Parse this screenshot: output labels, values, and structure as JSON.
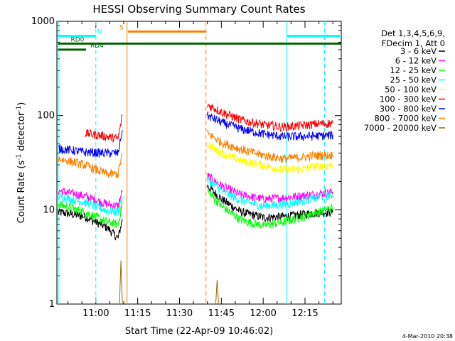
{
  "chart_data": {
    "type": "line",
    "title": "HESSI Observing Summary Count Rates",
    "xlabel": "Start Time (22-Apr-09 10:46:02)",
    "ylabel_main": "Count Rate (s",
    "ylabel_exp1": "-1",
    "ylabel_mid": " detector",
    "ylabel_exp2": "-1",
    "ylabel_end": ")",
    "yscale": "log",
    "ylim": [
      1,
      1000
    ],
    "xlim_minutes": [
      646.03,
      748
    ],
    "x_ticks": [
      {
        "minute": 660,
        "label": "11:00"
      },
      {
        "minute": 675,
        "label": "11:15"
      },
      {
        "minute": 690,
        "label": "11:30"
      },
      {
        "minute": 705,
        "label": "11:45"
      },
      {
        "minute": 720,
        "label": "12:00"
      },
      {
        "minute": 735,
        "label": "12:15"
      }
    ],
    "y_ticks": [
      {
        "value": 1,
        "label": "1"
      },
      {
        "value": 10,
        "label": "10"
      },
      {
        "value": 100,
        "label": "100"
      },
      {
        "value": 1000,
        "label": "1000"
      }
    ],
    "legend_header": [
      "Det 1,3,4,5,6,9,",
      "FDecim 1, Att 0"
    ],
    "legend_position": "right",
    "series": [
      {
        "name": "3 - 6 keV",
        "color": "#000000",
        "segments": [
          [
            [
              646.5,
              9.5
            ],
            [
              656,
              8.5
            ],
            [
              664,
              6.5
            ],
            [
              668,
              5.0
            ],
            [
              669.5,
              8
            ]
          ],
          [
            [
              700,
              18
            ],
            [
              705,
              13
            ],
            [
              712,
              9.5
            ],
            [
              720,
              8.3
            ],
            [
              728,
              8.5
            ],
            [
              737,
              9.2
            ],
            [
              745,
              9.5
            ]
          ]
        ]
      },
      {
        "name": "6 - 12 keV",
        "color": "#ff00ff",
        "segments": [
          [
            [
              646.5,
              16
            ],
            [
              656,
              14
            ],
            [
              664,
              11.5
            ],
            [
              668,
              11
            ],
            [
              669.5,
              16
            ]
          ],
          [
            [
              700,
              23
            ],
            [
              705,
              18
            ],
            [
              712,
              14.5
            ],
            [
              720,
              13
            ],
            [
              728,
              13.5
            ],
            [
              737,
              14.5
            ],
            [
              745,
              15.5
            ]
          ]
        ]
      },
      {
        "name": "12 - 25 keV",
        "color": "#00ff00",
        "segments": [
          [
            [
              646.5,
              11.5
            ],
            [
              656,
              9.5
            ],
            [
              664,
              7.5
            ],
            [
              668,
              7.0
            ],
            [
              669.5,
              12
            ]
          ],
          [
            [
              700,
              16
            ],
            [
              705,
              11
            ],
            [
              712,
              7.8
            ],
            [
              720,
              6.8
            ],
            [
              728,
              7.5
            ],
            [
              737,
              9
            ],
            [
              745,
              10.5
            ]
          ]
        ]
      },
      {
        "name": "25 - 50 keV",
        "color": "#00ffff",
        "segments": [
          [
            [
              646.5,
              14
            ],
            [
              656,
              12
            ],
            [
              664,
              9.8
            ],
            [
              668,
              9.5
            ],
            [
              669.5,
              14
            ]
          ],
          [
            [
              700,
              21
            ],
            [
              705,
              16
            ],
            [
              712,
              12.5
            ],
            [
              720,
              11
            ],
            [
              728,
              11.5
            ],
            [
              737,
              13
            ],
            [
              745,
              14.5
            ]
          ]
        ]
      },
      {
        "name": "50 - 100 keV",
        "color": "#ffff00",
        "segments": [
          [
            [
              700,
              50
            ],
            [
              705,
              40
            ],
            [
              712,
              33
            ],
            [
              720,
              30
            ],
            [
              727,
              26.5
            ],
            [
              733,
              27
            ],
            [
              740,
              29
            ],
            [
              745,
              30
            ]
          ]
        ]
      },
      {
        "name": "100 - 300 keV",
        "color": "#ff0000",
        "segments": [
          [
            [
              656.2,
              65
            ],
            [
              664,
              60
            ],
            [
              668,
              57
            ],
            [
              669.5,
              100
            ]
          ],
          [
            [
              700,
              130
            ],
            [
              705,
              110
            ],
            [
              712,
              90
            ],
            [
              720,
              80
            ],
            [
              727,
              76
            ],
            [
              733,
              78
            ],
            [
              740,
              82
            ],
            [
              745,
              83
            ]
          ]
        ]
      },
      {
        "name": "300 - 800 keV",
        "color": "#0000ff",
        "segments": [
          [
            [
              646.5,
              45
            ],
            [
              656,
              41
            ],
            [
              664,
              40
            ],
            [
              668,
              40
            ],
            [
              669.5,
              70
            ]
          ],
          [
            [
              700,
              100
            ],
            [
              705,
              85
            ],
            [
              712,
              72
            ],
            [
              720,
              64
            ],
            [
              727,
              60
            ],
            [
              733,
              60
            ],
            [
              740,
              61
            ],
            [
              745,
              62
            ]
          ]
        ]
      },
      {
        "name": "800 - 7000 keV",
        "color": "#ff8000",
        "segments": [
          [
            [
              646.5,
              35
            ],
            [
              656,
              30
            ],
            [
              664,
              24
            ],
            [
              668,
              24
            ],
            [
              669.5,
              40
            ]
          ],
          [
            [
              700,
              65
            ],
            [
              705,
              52
            ],
            [
              712,
              44
            ],
            [
              720,
              38
            ],
            [
              727,
              35
            ],
            [
              733,
              36
            ],
            [
              740,
              38
            ],
            [
              745,
              38
            ]
          ]
        ]
      },
      {
        "name": "7000 - 20000 keV",
        "color": "#996600",
        "segments": [
          [
            [
              668.5,
              1.02
            ],
            [
              669,
              2.9
            ],
            [
              669.5,
              1.02
            ]
          ],
          [
            [
              703,
              1.02
            ],
            [
              703.5,
              1.8
            ],
            [
              704,
              1.02
            ]
          ]
        ]
      }
    ],
    "state_bars": [
      {
        "name": "N",
        "color": "#00ffff",
        "y": 700,
        "segments": [
          [
            646.5,
            660
          ],
          [
            728.5,
            748
          ]
        ],
        "label": "N",
        "label_minute": 660.5
      },
      {
        "name": "S",
        "color": "#ff8000",
        "y": 780,
        "segments": [
          [
            671.5,
            699.5
          ]
        ],
        "label": "S",
        "label_minute": 668.5
      },
      {
        "name": "RD0",
        "color": "#006400",
        "y": 580,
        "segments": [
          [
            646.5,
            748
          ]
        ],
        "label": "RD0",
        "label_minute": 651
      },
      {
        "name": "RD4",
        "color": "#006400",
        "y": 500,
        "segments": [
          [
            646.5,
            656.5
          ]
        ],
        "label": "RD4",
        "label_minute": 658
      }
    ],
    "vertical_lines": [
      {
        "minute": 660,
        "color": "#00ffff",
        "style": "dashed"
      },
      {
        "minute": 671.2,
        "color": "#ff8000",
        "style": "solid"
      },
      {
        "minute": 699.5,
        "color": "#ff8000",
        "style": "dashed"
      },
      {
        "minute": 728.5,
        "color": "#00ffff",
        "style": "solid"
      },
      {
        "minute": 742,
        "color": "#00ffff",
        "style": "dashed"
      },
      {
        "minute": 646.5,
        "color": "#00ffff",
        "style": "solid"
      }
    ],
    "footer_date": "4-Mar-2010 20:38"
  }
}
